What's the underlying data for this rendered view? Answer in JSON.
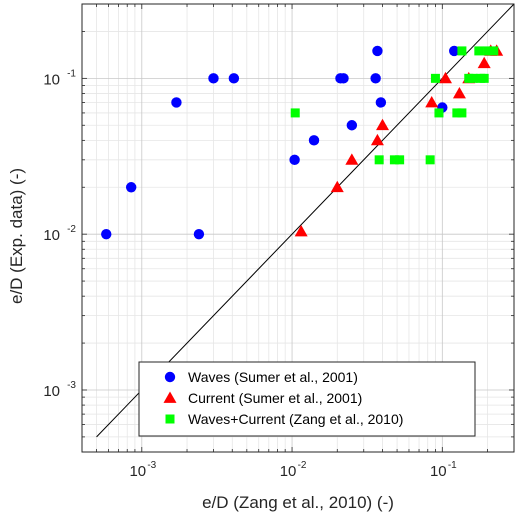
{
  "chart_data": {
    "type": "scatter",
    "xscale": "log",
    "yscale": "log",
    "xlim": [
      0.0004,
      0.3
    ],
    "ylim": [
      0.0004,
      0.3
    ],
    "grid": true,
    "xlabel": "e/D (Zang et al., 2010) (-)",
    "ylabel": "e/D (Exp. data) (-)",
    "x_ticks": [
      {
        "base": "10",
        "exp": "-3",
        "value": 0.001
      },
      {
        "base": "10",
        "exp": "-2",
        "value": 0.01
      },
      {
        "base": "10",
        "exp": "-1",
        "value": 0.1
      }
    ],
    "y_ticks": [
      {
        "base": "10",
        "exp": "-3",
        "value": 0.001
      },
      {
        "base": "10",
        "exp": "-2",
        "value": 0.01
      },
      {
        "base": "10",
        "exp": "-1",
        "value": 0.1
      }
    ],
    "reference_line": {
      "from": 0.0005,
      "to": 0.3
    },
    "legend_position": "bottom-center",
    "series": [
      {
        "name": "Waves (Sumer et al., 2001)",
        "marker": "circle",
        "color": "#0000ff",
        "points": [
          [
            0.00058,
            0.01
          ],
          [
            0.00085,
            0.02
          ],
          [
            0.0017,
            0.07
          ],
          [
            0.0024,
            0.01
          ],
          [
            0.003,
            0.1
          ],
          [
            0.0041,
            0.1
          ],
          [
            0.0104,
            0.03
          ],
          [
            0.014,
            0.04
          ],
          [
            0.021,
            0.1
          ],
          [
            0.022,
            0.1
          ],
          [
            0.025,
            0.05
          ],
          [
            0.036,
            0.1
          ],
          [
            0.037,
            0.15
          ],
          [
            0.039,
            0.07
          ],
          [
            0.1,
            0.065
          ],
          [
            0.12,
            0.15
          ]
        ]
      },
      {
        "name": "Current (Sumer et al., 2001)",
        "marker": "triangle",
        "color": "#ff0000",
        "points": [
          [
            0.0115,
            0.0104
          ],
          [
            0.02,
            0.02
          ],
          [
            0.025,
            0.03
          ],
          [
            0.037,
            0.04
          ],
          [
            0.04,
            0.05
          ],
          [
            0.085,
            0.07
          ],
          [
            0.105,
            0.1
          ],
          [
            0.13,
            0.08
          ],
          [
            0.15,
            0.1
          ],
          [
            0.19,
            0.125
          ],
          [
            0.21,
            0.15
          ],
          [
            0.23,
            0.15
          ]
        ]
      },
      {
        "name": "Waves+Current (Zang et al., 2010)",
        "marker": "square",
        "color": "#00ff00",
        "points": [
          [
            0.0105,
            0.06
          ],
          [
            0.038,
            0.03
          ],
          [
            0.048,
            0.03
          ],
          [
            0.052,
            0.03
          ],
          [
            0.083,
            0.03
          ],
          [
            0.09,
            0.1
          ],
          [
            0.095,
            0.06
          ],
          [
            0.125,
            0.06
          ],
          [
            0.135,
            0.06
          ],
          [
            0.135,
            0.15
          ],
          [
            0.15,
            0.1
          ],
          [
            0.16,
            0.1
          ],
          [
            0.175,
            0.15
          ],
          [
            0.18,
            0.1
          ],
          [
            0.19,
            0.1
          ],
          [
            0.2,
            0.15
          ],
          [
            0.22,
            0.15
          ]
        ]
      }
    ]
  }
}
